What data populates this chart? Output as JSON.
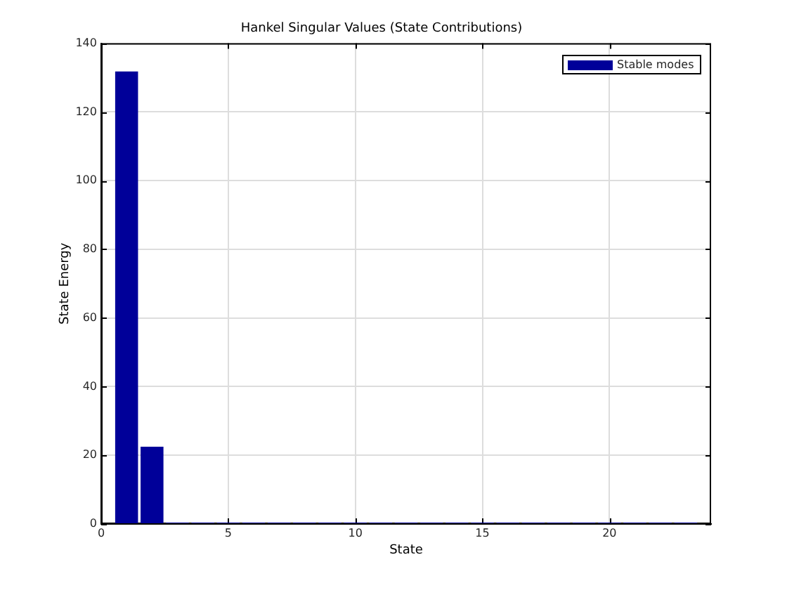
{
  "chart_data": {
    "type": "bar",
    "title": "Hankel Singular Values (State Contributions)",
    "xlabel": "State",
    "ylabel": "State Energy",
    "x": [
      1,
      2,
      3,
      4,
      5,
      6,
      7,
      8,
      9,
      10,
      11,
      12,
      13,
      14,
      15,
      16,
      17,
      18,
      19,
      20,
      21,
      22,
      23
    ],
    "series": [
      {
        "name": "Stable modes",
        "color": "#000099",
        "values": [
          131.8,
          22.5,
          0.4,
          0.4,
          0.4,
          0.4,
          0.4,
          0.4,
          0.4,
          0.4,
          0.4,
          0.4,
          0.4,
          0.4,
          0.4,
          0.4,
          0.4,
          0.4,
          0.4,
          0.4,
          0.4,
          0.4,
          0.4
        ]
      }
    ],
    "xlim": [
      0,
      24
    ],
    "xticks": [
      0,
      5,
      10,
      15,
      20
    ],
    "ylim": [
      0,
      140
    ],
    "yticks": [
      0,
      20,
      40,
      60,
      80,
      100,
      120,
      140
    ],
    "grid": true,
    "legend": "top right"
  }
}
